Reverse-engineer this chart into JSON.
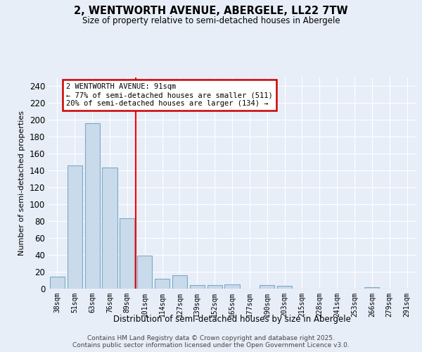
{
  "title1": "2, WENTWORTH AVENUE, ABERGELE, LL22 7TW",
  "title2": "Size of property relative to semi-detached houses in Abergele",
  "xlabel": "Distribution of semi-detached houses by size in Abergele",
  "ylabel": "Number of semi-detached properties",
  "categories": [
    "38sqm",
    "51sqm",
    "63sqm",
    "76sqm",
    "89sqm",
    "101sqm",
    "114sqm",
    "127sqm",
    "139sqm",
    "152sqm",
    "165sqm",
    "177sqm",
    "190sqm",
    "203sqm",
    "215sqm",
    "228sqm",
    "241sqm",
    "253sqm",
    "266sqm",
    "279sqm",
    "291sqm"
  ],
  "values": [
    14,
    146,
    196,
    143,
    83,
    39,
    12,
    16,
    4,
    4,
    5,
    0,
    4,
    3,
    0,
    0,
    0,
    0,
    2,
    0,
    0
  ],
  "bar_color": "#c9daea",
  "bar_edge_color": "#7aaac8",
  "red_line_x": 4,
  "annotation_text": "2 WENTWORTH AVENUE: 91sqm\n← 77% of semi-detached houses are smaller (511)\n20% of semi-detached houses are larger (134) →",
  "annotation_box_color": "#ffffff",
  "annotation_box_edge": "#cc0000",
  "ylim": [
    0,
    250
  ],
  "yticks": [
    0,
    20,
    40,
    60,
    80,
    100,
    120,
    140,
    160,
    180,
    200,
    220,
    240
  ],
  "background_color": "#e8eef8",
  "grid_color": "#ffffff",
  "footer1": "Contains HM Land Registry data © Crown copyright and database right 2025.",
  "footer2": "Contains public sector information licensed under the Open Government Licence v3.0."
}
